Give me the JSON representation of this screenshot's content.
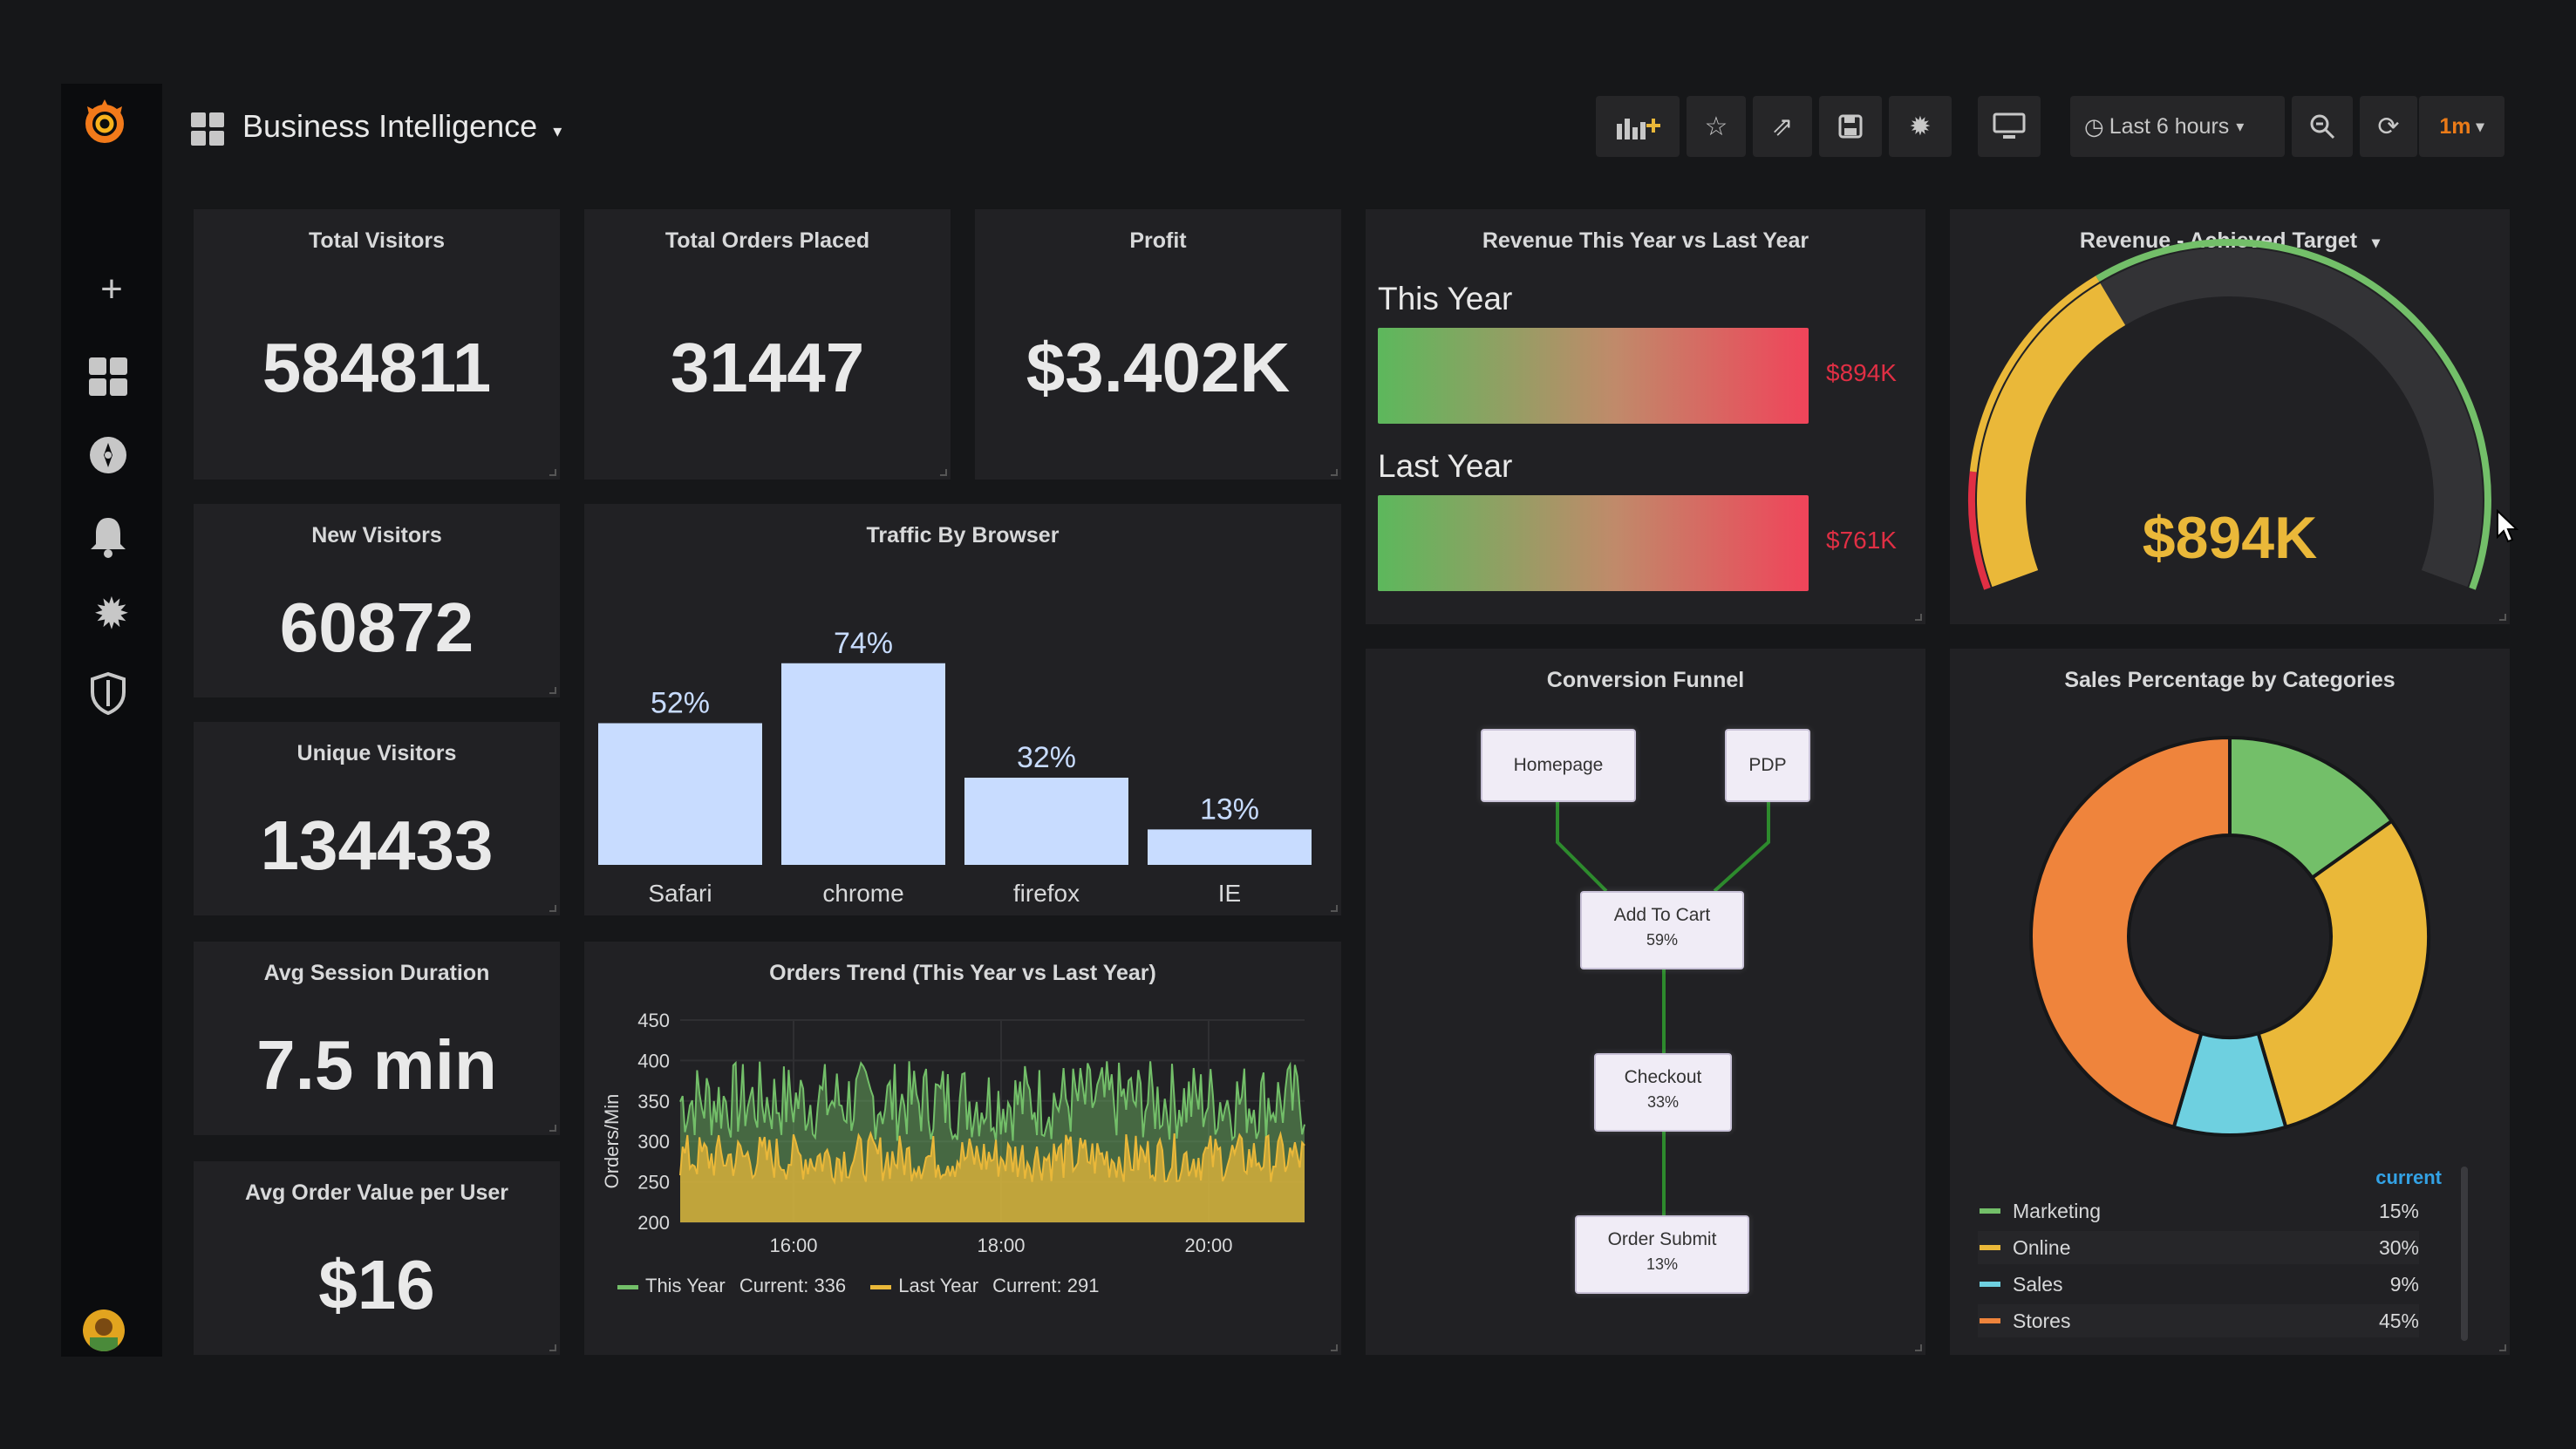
{
  "header": {
    "title": "Business Intelligence",
    "time_range": "Last 6 hours",
    "refresh_interval": "1m"
  },
  "sidebar": {
    "icons": [
      "plus-icon",
      "dashboards-icon",
      "explore-icon",
      "bell-icon",
      "gear-icon",
      "shield-icon"
    ]
  },
  "toolbar": {
    "icons": [
      "add-panel-icon",
      "star-icon",
      "share-icon",
      "save-icon",
      "settings-icon",
      "tv-mode-icon",
      "clock-icon",
      "search-icon",
      "refresh-icon"
    ]
  },
  "stats": {
    "total_visitors": {
      "title": "Total Visitors",
      "value": "584811"
    },
    "total_orders": {
      "title": "Total Orders Placed",
      "value": "31447"
    },
    "profit": {
      "title": "Profit",
      "value": "$3.402K"
    },
    "new_visitors": {
      "title": "New Visitors",
      "value": "60872"
    },
    "unique_visitors": {
      "title": "Unique Visitors",
      "value": "134433"
    },
    "avg_session": {
      "title": "Avg Session Duration",
      "value": "7.5 min"
    },
    "avg_order_value": {
      "title": "Avg Order Value per User",
      "value": "$16"
    }
  },
  "revenue": {
    "title": "Revenue This Year vs Last Year",
    "this_year_label": "This Year",
    "this_year_value": "$894K",
    "last_year_label": "Last Year",
    "last_year_value": "$761K",
    "value_color": "#e02f44"
  },
  "gauge": {
    "title": "Revenue - Achieved Target",
    "value": "$894K",
    "value_color": "#eab839",
    "fill_fraction": 0.36,
    "colors": {
      "red": "#e02f44",
      "yellow": "#eab839",
      "green": "#73bf69"
    }
  },
  "traffic": {
    "title": "Traffic By Browser",
    "bar_color": "#c8dcff"
  },
  "orders": {
    "title": "Orders Trend (This Year vs Last Year)",
    "ylabel": "Orders/Min",
    "legend": [
      {
        "name": "This Year",
        "current": "Current: 336",
        "color": "#73bf69"
      },
      {
        "name": "Last Year",
        "current": "Current: 291",
        "color": "#eab839"
      }
    ]
  },
  "funnel": {
    "title": "Conversion Funnel",
    "nodes": {
      "homepage": "Homepage",
      "pdp": "PDP",
      "cart": "Add To Cart",
      "cart_pct": "59%",
      "checkout": "Checkout",
      "checkout_pct": "33%",
      "submit": "Order Submit",
      "submit_pct": "13%"
    }
  },
  "sales": {
    "title": "Sales Percentage by Categories",
    "legend_header": "current"
  },
  "chart_data": [
    {
      "type": "bar",
      "title": "Traffic By Browser",
      "categories": [
        "Safari",
        "chrome",
        "firefox",
        "IE"
      ],
      "values": [
        52,
        74,
        32,
        13
      ],
      "value_labels": [
        "52%",
        "74%",
        "32%",
        "13%"
      ],
      "ylim": [
        0,
        80
      ]
    },
    {
      "type": "line",
      "title": "Orders Trend (This Year vs Last Year)",
      "ylabel": "Orders/Min",
      "ylim": [
        200,
        450
      ],
      "yticks": [
        "450",
        "400",
        "350",
        "300",
        "250",
        "200"
      ],
      "xticks": [
        "16:00",
        "18:00",
        "20:00"
      ],
      "series": [
        {
          "name": "This Year",
          "color": "#73bf69",
          "current": 336,
          "approx_range": [
            300,
            400
          ]
        },
        {
          "name": "Last Year",
          "color": "#eab839",
          "current": 291,
          "approx_range": [
            250,
            310
          ]
        }
      ]
    },
    {
      "type": "pie",
      "title": "Sales Percentage by Categories",
      "donut": true,
      "slices": [
        {
          "name": "Marketing",
          "value": 15,
          "label": "15%",
          "color": "#73bf69"
        },
        {
          "name": "Online",
          "value": 30,
          "label": "30%",
          "color": "#eab839"
        },
        {
          "name": "Sales",
          "value": 9,
          "label": "9%",
          "color": "#6ed0e0"
        },
        {
          "name": "Stores",
          "value": 45,
          "label": "45%",
          "color": "#ef843c"
        }
      ]
    }
  ]
}
